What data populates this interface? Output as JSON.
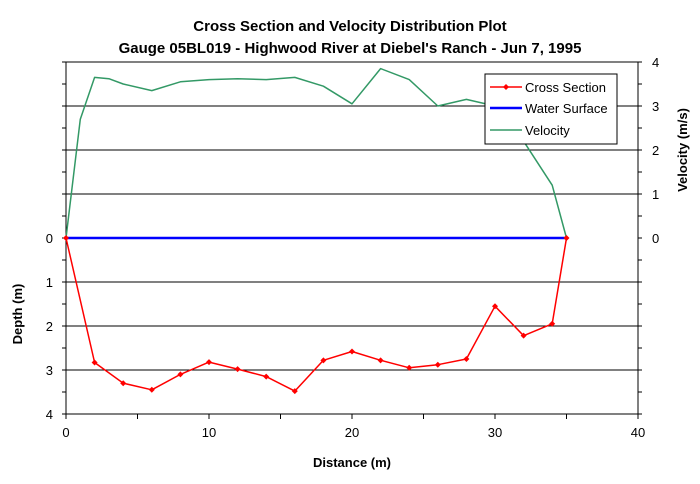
{
  "chart_data": {
    "type": "line",
    "title": "Cross Section and Velocity Distribution Plot",
    "subtitle": "Gauge 05BL019 - Highwood River at Diebel's Ranch - Jun 7, 1995",
    "xlabel": "Distance (m)",
    "ylabel_left": "Depth (m)",
    "ylabel_right": "Velocity (m/s)",
    "xlim": [
      0,
      40
    ],
    "x_ticks": [
      "0",
      "10",
      "20",
      "30",
      "40"
    ],
    "depth_ticks": [
      "0",
      "1",
      "2",
      "3",
      "4"
    ],
    "velocity_ticks": [
      "0",
      "1",
      "2",
      "3",
      "4"
    ],
    "grid": "horizontal",
    "legend_position": "top-right",
    "series": [
      {
        "name": "Cross Section",
        "axis": "depth",
        "color": "#ff0000",
        "marker": "diamond",
        "x": [
          0,
          2,
          4,
          6,
          8,
          10,
          12,
          14,
          16,
          18,
          20,
          22,
          24,
          26,
          28,
          30,
          32,
          34,
          35
        ],
        "y": [
          0,
          2.83,
          3.3,
          3.45,
          3.1,
          2.82,
          2.98,
          3.15,
          3.48,
          2.78,
          2.58,
          2.78,
          2.95,
          2.88,
          2.75,
          1.55,
          2.22,
          1.95,
          0
        ]
      },
      {
        "name": "Water Surface",
        "axis": "depth",
        "color": "#0000ff",
        "x": [
          0,
          35
        ],
        "y": [
          0,
          0
        ]
      },
      {
        "name": "Velocity",
        "axis": "velocity",
        "color": "#339966",
        "x": [
          0,
          1,
          2,
          3,
          4,
          6,
          8,
          10,
          12,
          14,
          16,
          18,
          20,
          22,
          24,
          26,
          28,
          30,
          32,
          34,
          35
        ],
        "y": [
          0,
          2.7,
          3.65,
          3.62,
          3.5,
          3.35,
          3.55,
          3.6,
          3.62,
          3.6,
          3.65,
          3.45,
          3.05,
          3.85,
          3.6,
          3.0,
          3.15,
          3.0,
          2.2,
          1.2,
          0
        ]
      }
    ]
  }
}
